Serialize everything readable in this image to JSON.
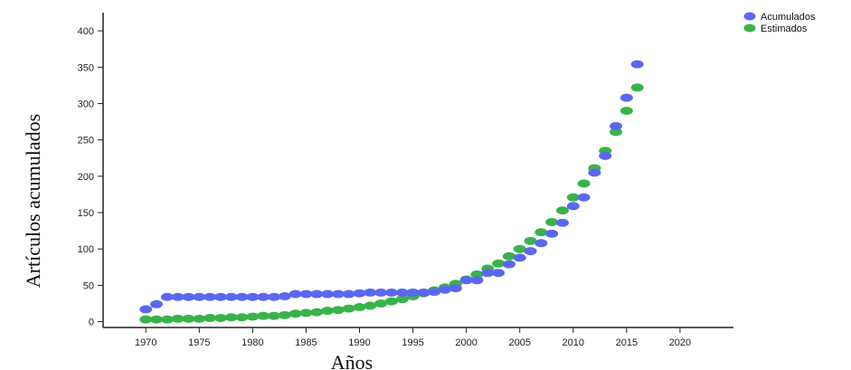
{
  "chart_data": {
    "type": "scatter",
    "xlabel": "Años",
    "ylabel": "Artículos acumulados",
    "xlim": [
      1966,
      2025
    ],
    "ylim": [
      -8,
      425
    ],
    "xticks": [
      1970,
      1975,
      1980,
      1985,
      1990,
      1995,
      2000,
      2005,
      2010,
      2015,
      2020
    ],
    "yticks": [
      0,
      50,
      100,
      150,
      200,
      250,
      300,
      350,
      400
    ],
    "grid": false,
    "legend_position": "top-right",
    "x": [
      1970,
      1971,
      1972,
      1973,
      1974,
      1975,
      1976,
      1977,
      1978,
      1979,
      1980,
      1981,
      1982,
      1983,
      1984,
      1985,
      1986,
      1987,
      1988,
      1989,
      1990,
      1991,
      1992,
      1993,
      1994,
      1995,
      1996,
      1997,
      1998,
      1999,
      2000,
      2001,
      2002,
      2003,
      2004,
      2005,
      2006,
      2007,
      2008,
      2009,
      2010,
      2011,
      2012,
      2013,
      2014,
      2015,
      2016
    ],
    "series": [
      {
        "name": "Acumulados",
        "color": "#5b67f0",
        "values": [
          17,
          24,
          34,
          34,
          34,
          34,
          34,
          34,
          34,
          34,
          34,
          34,
          34,
          35,
          38,
          38,
          38,
          38,
          38,
          38,
          39,
          40,
          40,
          40,
          40,
          40,
          40,
          41,
          44,
          46,
          57,
          57,
          67,
          67,
          79,
          88,
          97,
          108,
          121,
          136,
          159,
          171,
          205,
          228,
          269,
          308,
          354
        ]
      },
      {
        "name": "Estimados",
        "color": "#37b34a",
        "values": [
          3,
          3,
          3,
          4,
          4,
          4,
          5,
          5,
          6,
          6,
          7,
          8,
          8,
          9,
          11,
          12,
          13,
          15,
          16,
          18,
          20,
          22,
          25,
          28,
          31,
          35,
          39,
          43,
          47,
          52,
          58,
          65,
          73,
          80,
          90,
          100,
          111,
          123,
          137,
          153,
          171,
          190,
          211,
          235,
          261,
          290,
          322
        ]
      }
    ]
  }
}
